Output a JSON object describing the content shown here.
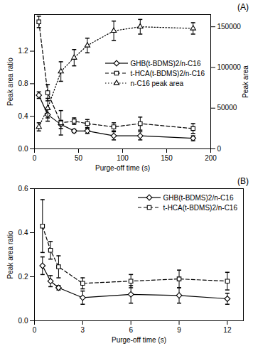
{
  "chart_data": [
    {
      "type": "line",
      "title": "(A)",
      "x": [
        5,
        15,
        30,
        45,
        60,
        90,
        120,
        180
      ],
      "xlabel": "Purge-off time (s)",
      "ylabel": "Peak area ratio",
      "y2label": "Peak area",
      "xlim": [
        0,
        200
      ],
      "xticks": [
        0,
        50,
        100,
        150,
        200
      ],
      "ylim": [
        0,
        1.65
      ],
      "yticks": [
        {
          "value": 0,
          "label": "0.0"
        },
        {
          "value": 0.4,
          "label": "0.4"
        },
        {
          "value": 0.8,
          "label": "0.8"
        },
        {
          "value": 1.2,
          "label": "1.2"
        }
      ],
      "y2lim": [
        0,
        165000
      ],
      "y2ticks": [
        0,
        50000,
        100000,
        150000
      ],
      "grid": false,
      "legend": "right",
      "series": [
        {
          "name": "GHB(t-BDMS)2/n-C16",
          "color": "#000000",
          "marker": "diamond",
          "line_style": "solid",
          "values": [
            0.66,
            0.42,
            0.3,
            0.22,
            0.22,
            0.16,
            0.16,
            0.13
          ],
          "errors": [
            0.04,
            0.08,
            0.05,
            0.02,
            0.03,
            0.05,
            0.05,
            0.03
          ]
        },
        {
          "name": "t-HCA(t-BDMS)2/n-C16",
          "color": "#000000",
          "marker": "square",
          "line_style": "dashed",
          "values": [
            1.56,
            0.69,
            0.32,
            0.34,
            0.31,
            0.27,
            0.31,
            0.25
          ],
          "errors": [
            0.07,
            0.1,
            0.15,
            0.04,
            0.05,
            0.05,
            0.08,
            0.06
          ]
        },
        {
          "name": "n-C16 peak area",
          "color": "#000000",
          "marker": "triangle",
          "line_style": "dotted",
          "axis": "y2",
          "values": [
            27000,
            50000,
            95000,
            112000,
            127000,
            145000,
            150000,
            148000
          ],
          "errors": [
            5000,
            12000,
            12000,
            10000,
            9000,
            12000,
            9000,
            7000
          ]
        }
      ]
    },
    {
      "type": "line",
      "title": "(B)",
      "x": [
        0.5,
        1,
        1.5,
        3,
        6,
        9,
        12
      ],
      "xlabel": "Purge-off time (s)",
      "ylabel": "Peak area ratio",
      "xlim": [
        0,
        13
      ],
      "xticks": [
        0,
        3,
        6,
        9,
        12
      ],
      "ylim": [
        0,
        0.6
      ],
      "yticks": [
        {
          "value": 0,
          "label": "0.0"
        },
        {
          "value": 0.2,
          "label": "0.2"
        },
        {
          "value": 0.4,
          "label": "0.4"
        },
        {
          "value": 0.6,
          "label": "0.6"
        }
      ],
      "grid": false,
      "legend": "top-right",
      "series": [
        {
          "name": "GHB(t-BDMS)2/n-C16",
          "color": "#000000",
          "marker": "diamond",
          "line_style": "solid",
          "values": [
            0.25,
            0.18,
            0.15,
            0.105,
            0.12,
            0.115,
            0.1
          ],
          "errors": [
            0.04,
            0.025,
            0.01,
            0.03,
            0.04,
            0.035,
            0.025
          ]
        },
        {
          "name": "t-HCA(t-BDMS)2/n-C16",
          "color": "#000000",
          "marker": "square",
          "line_style": "dashed",
          "values": [
            0.43,
            0.32,
            0.245,
            0.17,
            0.18,
            0.19,
            0.18
          ],
          "errors": [
            0.12,
            0.04,
            0.05,
            0.025,
            0.03,
            0.04,
            0.04
          ]
        }
      ]
    }
  ]
}
